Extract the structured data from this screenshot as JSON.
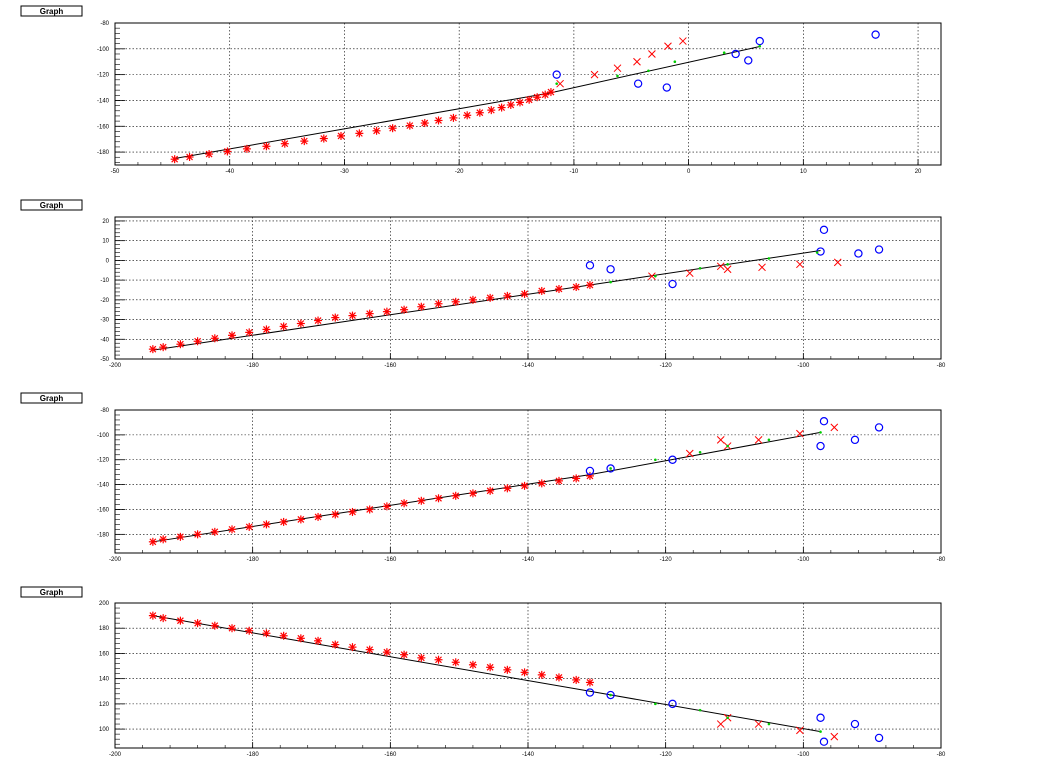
{
  "colors": {
    "fit_line": "#000000",
    "star_marker": "#ff0000",
    "cross_marker": "#ff0000",
    "circle_marker": "#0000ff",
    "green_point": "#00cc00",
    "grid": "#000000"
  },
  "chart_data": [
    {
      "type": "scatter",
      "title": "Graph",
      "xlim": [
        -50,
        22
      ],
      "ylim": [
        -190,
        -80
      ],
      "xticks": [
        -50,
        -40,
        -30,
        -20,
        -10,
        0,
        10,
        20
      ],
      "yticks": [
        -180,
        -160,
        -140,
        -120,
        -100,
        -80
      ],
      "grid": true,
      "series": [
        {
          "marker": "star",
          "color": "#ff0000",
          "x": [
            -44.8,
            -43.5,
            -41.8,
            -40.2,
            -38.5,
            -36.8,
            -35.2,
            -33.5,
            -31.8,
            -30.3,
            -28.7,
            -27.2,
            -25.8,
            -24.3,
            -23.0,
            -21.8,
            -20.5,
            -19.3,
            -18.2,
            -17.2,
            -16.3,
            -15.5,
            -14.7,
            -13.9,
            -13.2,
            -12.5,
            -12.0
          ],
          "y": [
            -185.5,
            -183.8,
            -181.5,
            -179.5,
            -177.5,
            -175.5,
            -173.5,
            -171.5,
            -169.5,
            -167.5,
            -165.5,
            -163.5,
            -161.5,
            -159.5,
            -157.5,
            -155.5,
            -153.5,
            -151.5,
            -149.5,
            -147.5,
            -145.5,
            -143.5,
            -141.5,
            -139.5,
            -137.5,
            -135.5,
            -133.5
          ]
        },
        {
          "marker": "cross",
          "color": "#ff0000",
          "x": [
            -11.2,
            -8.2,
            -6.2,
            -4.5,
            -3.2,
            -1.8,
            -0.5
          ],
          "y": [
            -127,
            -120,
            -115,
            -110,
            -104,
            -98,
            -94
          ]
        },
        {
          "marker": "circle",
          "color": "#0000ff",
          "x": [
            -11.5,
            -4.4,
            -1.9,
            4.1,
            5.2,
            6.2,
            16.3
          ],
          "y": [
            -120,
            -127,
            -130,
            -104,
            -109,
            -94,
            -89
          ]
        },
        {
          "marker": "dot",
          "color": "#00cc00",
          "x": [
            -11.5,
            -6.2,
            -3.5,
            -1.2,
            3.1,
            6.2
          ],
          "y": [
            -127,
            -121,
            -117,
            -110,
            -103,
            -98
          ]
        }
      ],
      "fit_line": {
        "x": [
          -44.8,
          -12.0,
          6.3
        ],
        "y": [
          -185.0,
          -134.0,
          -98.0
        ]
      }
    },
    {
      "type": "scatter",
      "title": "Graph",
      "xlim": [
        -200,
        -80
      ],
      "ylim": [
        -50,
        22
      ],
      "xticks": [
        -200,
        -180,
        -160,
        -140,
        -120,
        -100,
        -80
      ],
      "yticks": [
        -50,
        -40,
        -30,
        -20,
        -10,
        0,
        10,
        20
      ],
      "grid": true,
      "series": [
        {
          "marker": "star",
          "color": "#ff0000",
          "x": [
            -194.5,
            -193,
            -190.5,
            -188,
            -185.5,
            -183,
            -180.5,
            -178,
            -175.5,
            -173,
            -170.5,
            -168,
            -165.5,
            -163,
            -160.5,
            -158,
            -155.5,
            -153,
            -150.5,
            -148,
            -145.5,
            -143,
            -140.5,
            -138,
            -135.5,
            -133,
            -131
          ],
          "y": [
            -45,
            -44,
            -42.5,
            -41,
            -39.5,
            -38,
            -36.5,
            -35,
            -33.5,
            -32,
            -30.5,
            -29,
            -28,
            -27,
            -26,
            -25,
            -23.5,
            -22,
            -21,
            -20,
            -19,
            -18,
            -17,
            -15.5,
            -14.5,
            -13.5,
            -12.5
          ]
        },
        {
          "marker": "cross",
          "color": "#ff0000",
          "x": [
            -122,
            -116.5,
            -112,
            -111,
            -106,
            -100.5,
            -95
          ],
          "y": [
            -8,
            -6.5,
            -3,
            -4.5,
            -3.5,
            -2,
            -1
          ]
        },
        {
          "marker": "circle",
          "color": "#0000ff",
          "x": [
            -131,
            -128,
            -119,
            -97.5,
            -97,
            -92,
            -89
          ],
          "y": [
            -2.5,
            -4.5,
            -12,
            4.5,
            15.5,
            3.5,
            5.5
          ]
        },
        {
          "marker": "dot",
          "color": "#00cc00",
          "x": [
            -128,
            -121.5,
            -115,
            -111,
            -105,
            -98
          ],
          "y": [
            -11,
            -8,
            -4,
            -2,
            1,
            4
          ]
        }
      ],
      "fit_line": {
        "x": [
          -194.5,
          -131,
          -97.5
        ],
        "y": [
          -45.5,
          -12.5,
          5
        ]
      }
    },
    {
      "type": "scatter",
      "title": "Graph",
      "xlim": [
        -200,
        -80
      ],
      "ylim": [
        -195,
        -80
      ],
      "xticks": [
        -200,
        -180,
        -160,
        -140,
        -120,
        -100,
        -80
      ],
      "yticks": [
        -180,
        -160,
        -140,
        -120,
        -100,
        -80
      ],
      "grid": true,
      "series": [
        {
          "marker": "star",
          "color": "#ff0000",
          "x": [
            -194.5,
            -193,
            -190.5,
            -188,
            -185.5,
            -183,
            -180.5,
            -178,
            -175.5,
            -173,
            -170.5,
            -168,
            -165.5,
            -163,
            -160.5,
            -158,
            -155.5,
            -153,
            -150.5,
            -148,
            -145.5,
            -143,
            -140.5,
            -138,
            -135.5,
            -133,
            -131
          ],
          "y": [
            -186,
            -184,
            -182,
            -180,
            -178,
            -176,
            -174,
            -172,
            -170,
            -168,
            -166,
            -164,
            -162,
            -160,
            -157.5,
            -155,
            -153,
            -151,
            -149,
            -147,
            -145,
            -143,
            -141,
            -139,
            -137,
            -135,
            -133
          ]
        },
        {
          "marker": "cross",
          "color": "#ff0000",
          "x": [
            -116.5,
            -112,
            -111,
            -106.5,
            -100.5,
            -95.5
          ],
          "y": [
            -115,
            -104,
            -109,
            -104,
            -99,
            -94
          ]
        },
        {
          "marker": "circle",
          "color": "#0000ff",
          "x": [
            -131,
            -128,
            -119,
            -97.5,
            -97,
            -92.5,
            -89
          ],
          "y": [
            -129,
            -127,
            -120,
            -109,
            -89,
            -104,
            -94
          ]
        },
        {
          "marker": "dot",
          "color": "#00cc00",
          "x": [
            -128,
            -121.5,
            -115,
            -111,
            -105,
            -97.5
          ],
          "y": [
            -127,
            -120,
            -114,
            -109,
            -104,
            -98
          ]
        }
      ],
      "fit_line": {
        "x": [
          -194.5,
          -131,
          -97.5
        ],
        "y": [
          -186,
          -132,
          -98
        ]
      }
    },
    {
      "type": "scatter",
      "title": "Graph",
      "xlim": [
        -200,
        -80
      ],
      "ylim": [
        85,
        200
      ],
      "xticks": [
        -200,
        -180,
        -160,
        -140,
        -120,
        -100,
        -80
      ],
      "yticks": [
        100,
        120,
        140,
        160,
        180,
        200
      ],
      "grid": true,
      "series": [
        {
          "marker": "star",
          "color": "#ff0000",
          "x": [
            -194.5,
            -193,
            -190.5,
            -188,
            -185.5,
            -183,
            -180.5,
            -178,
            -175.5,
            -173,
            -170.5,
            -168,
            -165.5,
            -163,
            -160.5,
            -158,
            -155.5,
            -153,
            -150.5,
            -148,
            -145.5,
            -143,
            -140.5,
            -138,
            -135.5,
            -133,
            -131
          ],
          "y": [
            190,
            188,
            186,
            184,
            182,
            180,
            178,
            176,
            174,
            172,
            170,
            167,
            165,
            163,
            161,
            159,
            156.5,
            155,
            153,
            151,
            149,
            147,
            145,
            143,
            141,
            139,
            137
          ]
        },
        {
          "marker": "cross",
          "color": "#ff0000",
          "x": [
            -112,
            -111,
            -106.5,
            -100.5,
            -95.5
          ],
          "y": [
            104,
            109,
            104,
            99,
            94
          ]
        },
        {
          "marker": "circle",
          "color": "#0000ff",
          "x": [
            -131,
            -128,
            -119,
            -97.5,
            -97,
            -92.5,
            -89
          ],
          "y": [
            129,
            127,
            120,
            109,
            90,
            104,
            93
          ]
        },
        {
          "marker": "dot",
          "color": "#00cc00",
          "x": [
            -128,
            -121.5,
            -115,
            -111,
            -105,
            -97.5
          ],
          "y": [
            127,
            120,
            115,
            109,
            104,
            98
          ]
        }
      ],
      "fit_line": {
        "x": [
          -194.5,
          -131,
          -97.5
        ],
        "y": [
          190,
          130,
          98
        ]
      }
    }
  ]
}
